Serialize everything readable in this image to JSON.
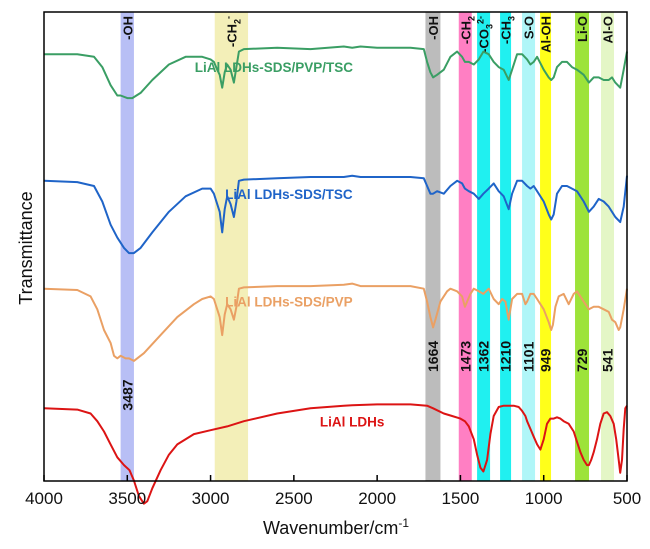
{
  "chart_data": {
    "type": "line",
    "title": "",
    "xlabel": "Wavenumber/cm",
    "xlabel_superscript": "-1",
    "ylabel": "Transmittance",
    "xlim": [
      4000,
      500
    ],
    "x_reversed": true,
    "xticks": [
      4000,
      3500,
      3000,
      2500,
      2000,
      1500,
      1000,
      500
    ],
    "xtick_labels": [
      "4000",
      "3500",
      "3000",
      "2500",
      "2000",
      "1500",
      "1000",
      "500"
    ],
    "yticks_shown": false,
    "grid": false,
    "legend": "inline labels next to each curve",
    "bands": [
      {
        "label": "-OH",
        "from": 3540,
        "to": 3460,
        "color": "#b8bff5",
        "peak_label": "3487"
      },
      {
        "label": "-CH2-",
        "label_main": "-CH",
        "label_sub": "2",
        "label_sup": "-",
        "from": 2975,
        "to": 2775,
        "color": "#f3efb8",
        "peak_label": ""
      },
      {
        "label": "-OH",
        "from": 1710,
        "to": 1620,
        "color": "#bcbcbc",
        "peak_label": "1664"
      },
      {
        "label": "-CH2",
        "label_main": "-CH",
        "label_sub": "2",
        "label_sup": "",
        "from": 1510,
        "to": 1432,
        "color": "#ff7fc3",
        "peak_label": "1473"
      },
      {
        "label": "-CO3 2-",
        "label_main": "-CO",
        "label_sub": "3",
        "label_sup": "2-",
        "from": 1400,
        "to": 1322,
        "color": "#20f0f0",
        "peak_label": "1362"
      },
      {
        "label": "-CH3",
        "label_main": "-CH",
        "label_sub": "3",
        "label_sup": "",
        "from": 1262,
        "to": 1196,
        "color": "#20f0f0",
        "peak_label": "1210"
      },
      {
        "label": "S-O",
        "from": 1130,
        "to": 1052,
        "color": "#b0f6f8",
        "peak_label": "1101"
      },
      {
        "label": "Al-OH",
        "from": 1022,
        "to": 956,
        "color": "#ffff1a",
        "peak_label": "949"
      },
      {
        "label": "Li-O",
        "from": 812,
        "to": 728,
        "color": "#9de33a",
        "peak_label": "729"
      },
      {
        "label": "Al-O",
        "from": 656,
        "to": 578,
        "color": "#e4f6c6",
        "peak_label": "541"
      }
    ],
    "series": [
      {
        "name": "LiAl LDHs-SDS/PVP/TSC",
        "color": "#3a9e64",
        "label_at": 2620,
        "offset": 0.91,
        "x": [
          4000,
          3800,
          3700,
          3650,
          3600,
          3560,
          3540,
          3500,
          3470,
          3420,
          3350,
          3250,
          3150,
          3050,
          3000,
          2980,
          2960,
          2945,
          2930,
          2915,
          2900,
          2880,
          2860,
          2845,
          2830,
          2800,
          2600,
          2400,
          2200,
          2150,
          2100,
          2000,
          1800,
          1720,
          1700,
          1680,
          1664,
          1640,
          1600,
          1560,
          1520,
          1490,
          1473,
          1450,
          1420,
          1390,
          1362,
          1330,
          1300,
          1270,
          1240,
          1210,
          1190,
          1160,
          1130,
          1100,
          1080,
          1060,
          1040,
          1000,
          970,
          955,
          940,
          920,
          890,
          860,
          830,
          800,
          760,
          729,
          700,
          670,
          640,
          610,
          590,
          570,
          541,
          520,
          500
        ],
        "y": [
          0.0,
          0.0,
          -0.01,
          -0.05,
          -0.12,
          -0.16,
          -0.16,
          -0.17,
          -0.17,
          -0.15,
          -0.1,
          -0.04,
          -0.01,
          -0.01,
          -0.02,
          -0.03,
          -0.06,
          -0.08,
          -0.13,
          -0.07,
          -0.04,
          -0.06,
          -0.11,
          -0.05,
          0.01,
          0.02,
          0.025,
          0.02,
          0.03,
          0.025,
          0.03,
          0.025,
          0.025,
          0.02,
          -0.03,
          -0.07,
          -0.09,
          -0.08,
          -0.06,
          -0.01,
          0.01,
          -0.01,
          -0.03,
          -0.03,
          -0.04,
          -0.02,
          0.01,
          0.0,
          -0.03,
          -0.05,
          -0.06,
          -0.1,
          -0.06,
          0.0,
          0.0,
          -0.02,
          -0.04,
          -0.03,
          -0.01,
          -0.06,
          -0.09,
          -0.1,
          -0.09,
          -0.05,
          -0.03,
          -0.03,
          -0.05,
          -0.06,
          -0.08,
          -0.11,
          -0.09,
          -0.09,
          -0.1,
          -0.1,
          -0.09,
          -0.11,
          -0.13,
          -0.06,
          0.01
        ]
      },
      {
        "name": "LiAl LDHs-SDS/TSC",
        "color": "#1f64c8",
        "label_at": 2530,
        "offset": 0.64,
        "x": [
          4000,
          3800,
          3700,
          3650,
          3600,
          3560,
          3520,
          3490,
          3460,
          3420,
          3350,
          3250,
          3150,
          3050,
          3000,
          2980,
          2960,
          2945,
          2930,
          2915,
          2900,
          2880,
          2860,
          2845,
          2830,
          2800,
          2600,
          2400,
          2200,
          2150,
          2100,
          2000,
          1800,
          1720,
          1700,
          1680,
          1664,
          1640,
          1600,
          1560,
          1520,
          1490,
          1473,
          1450,
          1420,
          1390,
          1362,
          1330,
          1300,
          1270,
          1240,
          1210,
          1190,
          1160,
          1130,
          1100,
          1080,
          1060,
          1040,
          1000,
          970,
          955,
          940,
          920,
          890,
          860,
          830,
          800,
          760,
          729,
          700,
          670,
          640,
          610,
          590,
          570,
          541,
          520,
          500
        ],
        "y": [
          0.0,
          -0.005,
          -0.02,
          -0.08,
          -0.17,
          -0.22,
          -0.26,
          -0.28,
          -0.28,
          -0.26,
          -0.2,
          -0.12,
          -0.06,
          -0.03,
          -0.03,
          -0.05,
          -0.09,
          -0.12,
          -0.2,
          -0.11,
          -0.06,
          -0.09,
          -0.14,
          -0.08,
          0.0,
          0.005,
          0.01,
          0.015,
          0.015,
          0.02,
          0.015,
          0.015,
          0.015,
          0.01,
          -0.02,
          -0.05,
          -0.05,
          -0.04,
          -0.05,
          -0.02,
          0.0,
          -0.01,
          -0.03,
          -0.04,
          -0.05,
          -0.07,
          -0.05,
          -0.03,
          -0.01,
          -0.04,
          -0.06,
          -0.11,
          -0.05,
          0.0,
          0.0,
          -0.02,
          -0.03,
          -0.02,
          -0.04,
          -0.08,
          -0.13,
          -0.15,
          -0.13,
          -0.05,
          -0.02,
          -0.02,
          -0.03,
          -0.04,
          -0.08,
          -0.12,
          -0.1,
          -0.07,
          -0.08,
          -0.1,
          -0.12,
          -0.14,
          -0.16,
          -0.1,
          0.02
        ]
      },
      {
        "name": "LiAl LDHs-SDS/PVP",
        "color": "#eaa064",
        "label_at": 2530,
        "offset": 0.41,
        "x": [
          4000,
          3800,
          3720,
          3680,
          3640,
          3600,
          3580,
          3560,
          3540,
          3510,
          3490,
          3460,
          3400,
          3300,
          3200,
          3100,
          3050,
          3000,
          2980,
          2960,
          2945,
          2930,
          2915,
          2900,
          2880,
          2860,
          2845,
          2830,
          2800,
          2600,
          2400,
          2200,
          2150,
          2100,
          2000,
          1800,
          1720,
          1700,
          1680,
          1664,
          1650,
          1620,
          1580,
          1560,
          1520,
          1490,
          1473,
          1440,
          1420,
          1390,
          1362,
          1330,
          1300,
          1270,
          1250,
          1230,
          1210,
          1190,
          1160,
          1130,
          1110,
          1100,
          1080,
          1060,
          1040,
          1000,
          970,
          955,
          945,
          930,
          910,
          880,
          850,
          820,
          800,
          760,
          729,
          700,
          670,
          640,
          610,
          590,
          570,
          550,
          541,
          520,
          500
        ],
        "y": [
          0.0,
          -0.005,
          -0.03,
          -0.08,
          -0.16,
          -0.21,
          -0.26,
          -0.27,
          -0.26,
          -0.27,
          -0.27,
          -0.28,
          -0.25,
          -0.18,
          -0.11,
          -0.06,
          -0.04,
          -0.03,
          -0.04,
          -0.08,
          -0.11,
          -0.18,
          -0.1,
          -0.06,
          -0.08,
          -0.12,
          -0.07,
          0.0,
          0.005,
          0.01,
          0.01,
          0.015,
          0.02,
          0.01,
          0.01,
          0.01,
          0.0,
          -0.05,
          -0.11,
          -0.15,
          -0.12,
          -0.05,
          -0.01,
          0.0,
          -0.01,
          -0.03,
          -0.07,
          -0.02,
          0.0,
          -0.01,
          -0.02,
          0.0,
          -0.04,
          -0.06,
          -0.04,
          -0.05,
          -0.12,
          -0.04,
          -0.02,
          -0.02,
          -0.06,
          -0.05,
          -0.02,
          -0.02,
          -0.04,
          -0.08,
          -0.13,
          -0.16,
          -0.14,
          -0.07,
          -0.03,
          -0.02,
          -0.06,
          -0.02,
          -0.01,
          -0.05,
          -0.08,
          -0.07,
          -0.07,
          -0.08,
          -0.09,
          -0.12,
          -0.13,
          -0.16,
          -0.15,
          -0.08,
          0.0
        ]
      },
      {
        "name": "LiAl LDHs",
        "color": "#dc1414",
        "label_at": 2150,
        "offset": 0.155,
        "x": [
          4000,
          3800,
          3720,
          3680,
          3640,
          3600,
          3560,
          3520,
          3487,
          3460,
          3430,
          3400,
          3380,
          3350,
          3300,
          3250,
          3200,
          3100,
          3000,
          2900,
          2800,
          2600,
          2400,
          2200,
          2150,
          2000,
          1800,
          1700,
          1664,
          1600,
          1550,
          1500,
          1473,
          1450,
          1420,
          1400,
          1380,
          1362,
          1340,
          1320,
          1300,
          1270,
          1240,
          1210,
          1180,
          1150,
          1130,
          1110,
          1100,
          1080,
          1060,
          1040,
          1020,
          1000,
          980,
          960,
          940,
          920,
          900,
          880,
          850,
          820,
          800,
          780,
          760,
          740,
          729,
          715,
          700,
          680,
          660,
          640,
          620,
          600,
          580,
          565,
          550,
          541,
          530,
          520,
          510,
          500
        ],
        "y": [
          0.0,
          -0.005,
          -0.02,
          -0.05,
          -0.09,
          -0.14,
          -0.19,
          -0.22,
          -0.24,
          -0.28,
          -0.34,
          -0.37,
          -0.36,
          -0.31,
          -0.24,
          -0.18,
          -0.14,
          -0.1,
          -0.085,
          -0.07,
          -0.05,
          -0.02,
          0.0,
          0.01,
          0.012,
          0.015,
          0.015,
          0.01,
          0.0,
          -0.02,
          -0.03,
          -0.04,
          -0.05,
          -0.07,
          -0.12,
          -0.18,
          -0.23,
          -0.245,
          -0.2,
          -0.1,
          -0.03,
          0.005,
          0.01,
          0.01,
          0.01,
          0.005,
          -0.01,
          -0.03,
          -0.05,
          -0.08,
          -0.11,
          -0.14,
          -0.16,
          -0.12,
          -0.06,
          -0.04,
          -0.04,
          -0.035,
          -0.04,
          -0.05,
          -0.06,
          -0.09,
          -0.13,
          -0.17,
          -0.2,
          -0.22,
          -0.22,
          -0.2,
          -0.17,
          -0.12,
          -0.06,
          -0.02,
          -0.015,
          -0.03,
          -0.06,
          -0.12,
          -0.2,
          -0.25,
          -0.2,
          -0.08,
          0.0,
          0.01
        ]
      }
    ]
  }
}
